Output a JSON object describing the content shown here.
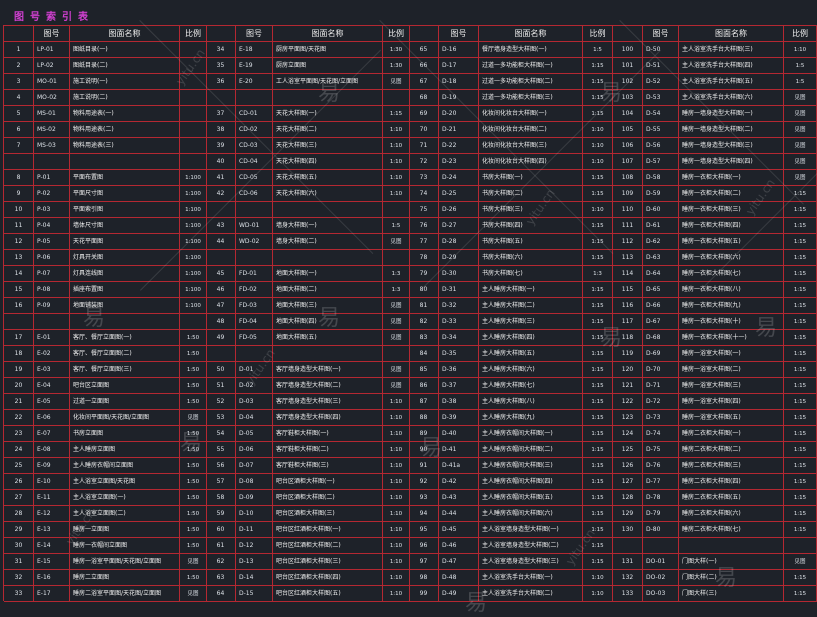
{
  "title": "图号索引表",
  "headers": {
    "seq": "",
    "code": "图号",
    "name": "图面名称",
    "scale": "比例"
  },
  "columns": [
    [
      [
        "1",
        "LP-01",
        "图纸目录(一)",
        ""
      ],
      [
        "2",
        "LP-02",
        "图纸目录(二)",
        ""
      ],
      [
        "3",
        "MO-01",
        "施工说明(一)",
        ""
      ],
      [
        "4",
        "MO-02",
        "施工说明(二)",
        ""
      ],
      [
        "5",
        "MS-01",
        "物料用途表(一)",
        ""
      ],
      [
        "6",
        "MS-02",
        "物料用途表(二)",
        ""
      ],
      [
        "7",
        "MS-03",
        "物料用途表(三)",
        ""
      ],
      [
        "",
        "",
        "",
        ""
      ],
      [
        "8",
        "P-01",
        "平面布置图",
        "1:100"
      ],
      [
        "9",
        "P-02",
        "平面尺寸图",
        "1:100"
      ],
      [
        "10",
        "P-03",
        "平面索引图",
        "1:100"
      ],
      [
        "11",
        "P-04",
        "墙体尺寸图",
        "1:100"
      ],
      [
        "12",
        "P-05",
        "天花平面图",
        "1:100"
      ],
      [
        "13",
        "P-06",
        "灯具开关图",
        "1:100"
      ],
      [
        "14",
        "P-07",
        "灯具连线图",
        "1:100"
      ],
      [
        "15",
        "P-08",
        "插座布置图",
        "1:100"
      ],
      [
        "16",
        "P-09",
        "地面铺装图",
        "1:100"
      ],
      [
        "",
        "",
        "",
        ""
      ],
      [
        "17",
        "E-01",
        "客厅、餐厅立面图(一)",
        "1:50"
      ],
      [
        "18",
        "E-02",
        "客厅、餐厅立面图(二)",
        "1:50"
      ],
      [
        "19",
        "E-03",
        "客厅、餐厅立面图(三)",
        "1:50"
      ],
      [
        "20",
        "E-04",
        "吧台区立面图",
        "1:50"
      ],
      [
        "21",
        "E-05",
        "过道一立面图",
        "1:50"
      ],
      [
        "22",
        "E-06",
        "化妆间平面图/天花图/立面图",
        "见图"
      ],
      [
        "23",
        "E-07",
        "书房立面图",
        "1:50"
      ],
      [
        "24",
        "E-08",
        "主人睡房立面图",
        "1:50"
      ],
      [
        "25",
        "E-09",
        "主人睡房衣帽间立面图",
        "1:50"
      ],
      [
        "26",
        "E-10",
        "主人浴室立面图/天花图",
        "1:50"
      ],
      [
        "27",
        "E-11",
        "主人浴室立面图(一)",
        "1:50"
      ],
      [
        "28",
        "E-12",
        "主人浴室立面图(二)",
        "1:50"
      ],
      [
        "29",
        "E-13",
        "睡房一立面图",
        "1:50"
      ],
      [
        "30",
        "E-14",
        "睡房一衣帽间立面图",
        "1:50"
      ],
      [
        "31",
        "E-15",
        "睡房一浴室平面图/天花图/立面图",
        "见图"
      ],
      [
        "32",
        "E-16",
        "睡房二立面图",
        "1:50"
      ],
      [
        "33",
        "E-17",
        "睡房二浴室平面图/天花图/立面图",
        "见图"
      ]
    ],
    [
      [
        "34",
        "E-18",
        "厨房平面图/天花图",
        "1:30"
      ],
      [
        "35",
        "E-19",
        "厨房立面图",
        "1:30"
      ],
      [
        "36",
        "E-20",
        "工人浴室平面图/天花图/立面图",
        "见图"
      ],
      [
        "",
        "",
        "",
        ""
      ],
      [
        "37",
        "CD-01",
        "天花大样图(一)",
        "1:15"
      ],
      [
        "38",
        "CD-02",
        "天花大样图(二)",
        "1:10"
      ],
      [
        "39",
        "CD-03",
        "天花大样图(三)",
        "1:10"
      ],
      [
        "40",
        "CD-04",
        "天花大样图(四)",
        "1:10"
      ],
      [
        "41",
        "CD-05",
        "天花大样图(五)",
        "1:10"
      ],
      [
        "42",
        "CD-06",
        "天花大样图(六)",
        "1:10"
      ],
      [
        "",
        "",
        "",
        ""
      ],
      [
        "43",
        "WD-01",
        "墙身大样图(一)",
        "1:5"
      ],
      [
        "44",
        "WD-02",
        "墙身大样图(二)",
        "见图"
      ],
      [
        "",
        "",
        "",
        ""
      ],
      [
        "45",
        "FD-01",
        "地面大样图(一)",
        "1:3"
      ],
      [
        "46",
        "FD-02",
        "地面大样图(二)",
        "1:3"
      ],
      [
        "47",
        "FD-03",
        "地面大样图(三)",
        "见图"
      ],
      [
        "48",
        "FD-04",
        "地面大样图(四)",
        "见图"
      ],
      [
        "49",
        "FD-05",
        "地面大样图(五)",
        "见图"
      ],
      [
        "",
        "",
        "",
        ""
      ],
      [
        "50",
        "D-01",
        "客厅墙身造型大样图(一)",
        "见图"
      ],
      [
        "51",
        "D-02",
        "客厅墙身造型大样图(二)",
        "见图"
      ],
      [
        "52",
        "D-03",
        "客厅墙身造型大样图(三)",
        "1:10"
      ],
      [
        "53",
        "D-04",
        "客厅墙身造型大样图(四)",
        "1:10"
      ],
      [
        "54",
        "D-05",
        "客厅鞋柜大样图(一)",
        "1:10"
      ],
      [
        "55",
        "D-06",
        "客厅鞋柜大样图(二)",
        "1:10"
      ],
      [
        "56",
        "D-07",
        "客厅鞋柜大样图(三)",
        "1:10"
      ],
      [
        "57",
        "D-08",
        "吧台区酒柜大样图(一)",
        "1:10"
      ],
      [
        "58",
        "D-09",
        "吧台区酒柜大样图(二)",
        "1:10"
      ],
      [
        "59",
        "D-10",
        "吧台区酒柜大样图(三)",
        "1:10"
      ],
      [
        "60",
        "D-11",
        "吧台区红酒柜大样图(一)",
        "1:10"
      ],
      [
        "61",
        "D-12",
        "吧台区红酒柜大样图(二)",
        "1:10"
      ],
      [
        "62",
        "D-13",
        "吧台区红酒柜大样图(三)",
        "1:10"
      ],
      [
        "63",
        "D-14",
        "吧台区红酒柜大样图(四)",
        "1:10"
      ],
      [
        "64",
        "D-15",
        "吧台区红酒柜大样图(五)",
        "1:10"
      ]
    ],
    [
      [
        "65",
        "D-16",
        "餐厅墙身造型大样图(一)",
        "1:5"
      ],
      [
        "66",
        "D-17",
        "过道一多功能柜大样图(一)",
        "1:15"
      ],
      [
        "67",
        "D-18",
        "过道一多功能柜大样图(二)",
        "1:15"
      ],
      [
        "68",
        "D-19",
        "过道一多功能柜大样图(三)",
        "1:15"
      ],
      [
        "69",
        "D-20",
        "化妆间化妆台大样图(一)",
        "1:15"
      ],
      [
        "70",
        "D-21",
        "化妆间化妆台大样图(二)",
        "1:10"
      ],
      [
        "71",
        "D-22",
        "化妆间化妆台大样图(三)",
        "1:10"
      ],
      [
        "72",
        "D-23",
        "化妆间化妆台大样图(四)",
        "1:10"
      ],
      [
        "73",
        "D-24",
        "书房大样图(一)",
        "1:15"
      ],
      [
        "74",
        "D-25",
        "书房大样图(二)",
        "1:15"
      ],
      [
        "75",
        "D-26",
        "书房大样图(三)",
        "1:10"
      ],
      [
        "76",
        "D-27",
        "书房大样图(四)",
        "1:15"
      ],
      [
        "77",
        "D-28",
        "书房大样图(五)",
        "1:15"
      ],
      [
        "78",
        "D-29",
        "书房大样图(六)",
        "1:15"
      ],
      [
        "79",
        "D-30",
        "书房大样图(七)",
        "1:3"
      ],
      [
        "80",
        "D-31",
        "主人睡房大样图(一)",
        "1:15"
      ],
      [
        "81",
        "D-32",
        "主人睡房大样图(二)",
        "1:15"
      ],
      [
        "82",
        "D-33",
        "主人睡房大样图(三)",
        "1:15"
      ],
      [
        "83",
        "D-34",
        "主人睡房大样图(四)",
        "1:15"
      ],
      [
        "84",
        "D-35",
        "主人睡房大样图(五)",
        "1:15"
      ],
      [
        "85",
        "D-36",
        "主人睡房大样图(六)",
        "1:15"
      ],
      [
        "86",
        "D-37",
        "主人睡房大样图(七)",
        "1:15"
      ],
      [
        "87",
        "D-38",
        "主人睡房大样图(八)",
        "1:15"
      ],
      [
        "88",
        "D-39",
        "主人睡房大样图(九)",
        "1:15"
      ],
      [
        "89",
        "D-40",
        "主人睡房衣帽间大样图(一)",
        "1:15"
      ],
      [
        "90",
        "D-41",
        "主人睡房衣帽间大样图(二)",
        "1:15"
      ],
      [
        "91",
        "D-41a",
        "主人睡房衣帽间大样图(三)",
        "1:15"
      ],
      [
        "92",
        "D-42",
        "主人睡房衣帽间大样图(四)",
        "1:15"
      ],
      [
        "93",
        "D-43",
        "主人睡房衣帽间大样图(五)",
        "1:15"
      ],
      [
        "94",
        "D-44",
        "主人睡房衣帽间大样图(六)",
        "1:15"
      ],
      [
        "95",
        "D-45",
        "主人浴室墙身造型大样图(一)",
        "1:15"
      ],
      [
        "96",
        "D-46",
        "主人浴室墙身造型大样图(二)",
        "1:15"
      ],
      [
        "97",
        "D-47",
        "主人浴室墙身造型大样图(三)",
        "1:15"
      ],
      [
        "98",
        "D-48",
        "主人浴室洗手台大样图(一)",
        "1:10"
      ],
      [
        "99",
        "D-49",
        "主人浴室洗手台大样图(二)",
        "1:10"
      ]
    ],
    [
      [
        "100",
        "D-50",
        "主人浴室洗手台大样图(三)",
        "1:10"
      ],
      [
        "101",
        "D-51",
        "主人浴室洗手台大样图(四)",
        "1:5"
      ],
      [
        "102",
        "D-52",
        "主人浴室洗手台大样图(五)",
        "1:5"
      ],
      [
        "103",
        "D-53",
        "主人浴室洗手台大样图(六)",
        "见图"
      ],
      [
        "104",
        "D-54",
        "睡房一墙身造型大样图(一)",
        "见图"
      ],
      [
        "105",
        "D-55",
        "睡房一墙身造型大样图(二)",
        "见图"
      ],
      [
        "106",
        "D-56",
        "睡房一墙身造型大样图(三)",
        "见图"
      ],
      [
        "107",
        "D-57",
        "睡房一墙身造型大样图(四)",
        "见图"
      ],
      [
        "108",
        "D-58",
        "睡房一衣柜大样图(一)",
        "见图"
      ],
      [
        "109",
        "D-59",
        "睡房一衣柜大样图(二)",
        "1:15"
      ],
      [
        "110",
        "D-60",
        "睡房一衣柜大样图(三)",
        "1:15"
      ],
      [
        "111",
        "D-61",
        "睡房一衣柜大样图(四)",
        "1:15"
      ],
      [
        "112",
        "D-62",
        "睡房一衣柜大样图(五)",
        "1:15"
      ],
      [
        "113",
        "D-63",
        "睡房一衣柜大样图(六)",
        "1:15"
      ],
      [
        "114",
        "D-64",
        "睡房一衣柜大样图(七)",
        "1:15"
      ],
      [
        "115",
        "D-65",
        "睡房一衣柜大样图(八)",
        "1:15"
      ],
      [
        "116",
        "D-66",
        "睡房一衣柜大样图(九)",
        "1:15"
      ],
      [
        "117",
        "D-67",
        "睡房一衣柜大样图(十)",
        "1:15"
      ],
      [
        "118",
        "D-68",
        "睡房一衣柜大样图(十一)",
        "1:15"
      ],
      [
        "119",
        "D-69",
        "睡房一浴室大样图(一)",
        "1:15"
      ],
      [
        "120",
        "D-70",
        "睡房一浴室大样图(二)",
        "1:15"
      ],
      [
        "121",
        "D-71",
        "睡房一浴室大样图(三)",
        "1:15"
      ],
      [
        "122",
        "D-72",
        "睡房一浴室大样图(四)",
        "1:15"
      ],
      [
        "123",
        "D-73",
        "睡房一浴室大样图(五)",
        "1:15"
      ],
      [
        "124",
        "D-74",
        "睡房二衣柜大样图(一)",
        "1:15"
      ],
      [
        "125",
        "D-75",
        "睡房二衣柜大样图(二)",
        "1:15"
      ],
      [
        "126",
        "D-76",
        "睡房二衣柜大样图(三)",
        "1:15"
      ],
      [
        "127",
        "D-77",
        "睡房二衣柜大样图(四)",
        "1:15"
      ],
      [
        "128",
        "D-78",
        "睡房二衣柜大样图(五)",
        "1:15"
      ],
      [
        "129",
        "D-79",
        "睡房二衣柜大样图(六)",
        "1:15"
      ],
      [
        "130",
        "D-80",
        "睡房二衣柜大样图(七)",
        "1:15"
      ],
      [
        "",
        "",
        "",
        ""
      ],
      [
        "131",
        "DO-01",
        "门图大样(一)",
        "见图"
      ],
      [
        "132",
        "DO-02",
        "门图大样(二)",
        "1:15"
      ],
      [
        "133",
        "DO-03",
        "门图大样(三)",
        "1:15"
      ]
    ]
  ],
  "watermarks": [
    "易",
    "yitu.cn"
  ]
}
